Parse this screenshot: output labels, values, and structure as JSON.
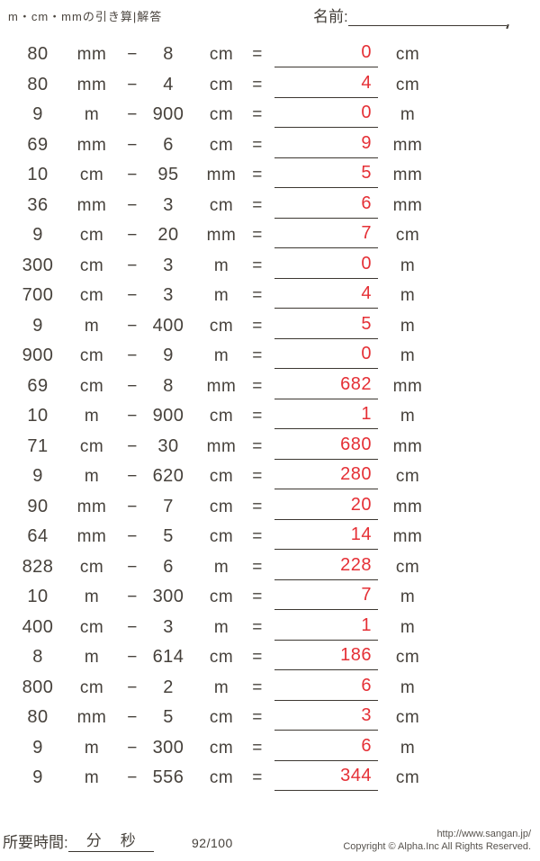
{
  "page": {
    "title": "m・cm・mmの引き算|解答",
    "name_label": "名前:"
  },
  "operators": {
    "minus": "−",
    "equals": "="
  },
  "problems": [
    {
      "a": "80",
      "unit_a": "mm",
      "b": "8",
      "unit_b": "cm",
      "answer": "0",
      "unit_ans": "cm"
    },
    {
      "a": "80",
      "unit_a": "mm",
      "b": "4",
      "unit_b": "cm",
      "answer": "4",
      "unit_ans": "cm"
    },
    {
      "a": "9",
      "unit_a": "m",
      "b": "900",
      "unit_b": "cm",
      "answer": "0",
      "unit_ans": "m"
    },
    {
      "a": "69",
      "unit_a": "mm",
      "b": "6",
      "unit_b": "cm",
      "answer": "9",
      "unit_ans": "mm"
    },
    {
      "a": "10",
      "unit_a": "cm",
      "b": "95",
      "unit_b": "mm",
      "answer": "5",
      "unit_ans": "mm"
    },
    {
      "a": "36",
      "unit_a": "mm",
      "b": "3",
      "unit_b": "cm",
      "answer": "6",
      "unit_ans": "mm"
    },
    {
      "a": "9",
      "unit_a": "cm",
      "b": "20",
      "unit_b": "mm",
      "answer": "7",
      "unit_ans": "cm"
    },
    {
      "a": "300",
      "unit_a": "cm",
      "b": "3",
      "unit_b": "m",
      "answer": "0",
      "unit_ans": "m"
    },
    {
      "a": "700",
      "unit_a": "cm",
      "b": "3",
      "unit_b": "m",
      "answer": "4",
      "unit_ans": "m"
    },
    {
      "a": "9",
      "unit_a": "m",
      "b": "400",
      "unit_b": "cm",
      "answer": "5",
      "unit_ans": "m"
    },
    {
      "a": "900",
      "unit_a": "cm",
      "b": "9",
      "unit_b": "m",
      "answer": "0",
      "unit_ans": "m"
    },
    {
      "a": "69",
      "unit_a": "cm",
      "b": "8",
      "unit_b": "mm",
      "answer": "682",
      "unit_ans": "mm"
    },
    {
      "a": "10",
      "unit_a": "m",
      "b": "900",
      "unit_b": "cm",
      "answer": "1",
      "unit_ans": "m"
    },
    {
      "a": "71",
      "unit_a": "cm",
      "b": "30",
      "unit_b": "mm",
      "answer": "680",
      "unit_ans": "mm"
    },
    {
      "a": "9",
      "unit_a": "m",
      "b": "620",
      "unit_b": "cm",
      "answer": "280",
      "unit_ans": "cm"
    },
    {
      "a": "90",
      "unit_a": "mm",
      "b": "7",
      "unit_b": "cm",
      "answer": "20",
      "unit_ans": "mm"
    },
    {
      "a": "64",
      "unit_a": "mm",
      "b": "5",
      "unit_b": "cm",
      "answer": "14",
      "unit_ans": "mm"
    },
    {
      "a": "828",
      "unit_a": "cm",
      "b": "6",
      "unit_b": "m",
      "answer": "228",
      "unit_ans": "cm"
    },
    {
      "a": "10",
      "unit_a": "m",
      "b": "300",
      "unit_b": "cm",
      "answer": "7",
      "unit_ans": "m"
    },
    {
      "a": "400",
      "unit_a": "cm",
      "b": "3",
      "unit_b": "m",
      "answer": "1",
      "unit_ans": "m"
    },
    {
      "a": "8",
      "unit_a": "m",
      "b": "614",
      "unit_b": "cm",
      "answer": "186",
      "unit_ans": "cm"
    },
    {
      "a": "800",
      "unit_a": "cm",
      "b": "2",
      "unit_b": "m",
      "answer": "6",
      "unit_ans": "m"
    },
    {
      "a": "80",
      "unit_a": "mm",
      "b": "5",
      "unit_b": "cm",
      "answer": "3",
      "unit_ans": "cm"
    },
    {
      "a": "9",
      "unit_a": "m",
      "b": "300",
      "unit_b": "cm",
      "answer": "6",
      "unit_ans": "m"
    },
    {
      "a": "9",
      "unit_a": "m",
      "b": "556",
      "unit_b": "cm",
      "answer": "344",
      "unit_ans": "cm"
    }
  ],
  "footer": {
    "time_label": "所要時間:",
    "minutes_label": "分",
    "seconds_label": "秒",
    "score": "92/100",
    "url": "http://www.sangan.jp/",
    "copyright": "Copyright © Alpha.Inc All Rights Reserved."
  },
  "colors": {
    "text": "#46413b",
    "answer_red": "#e53036",
    "line": "#3c3731"
  }
}
